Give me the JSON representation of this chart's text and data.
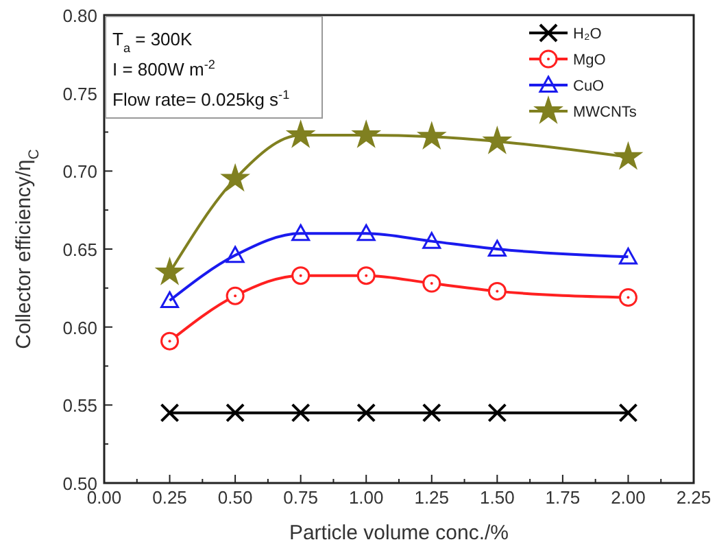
{
  "chart_data": {
    "type": "line",
    "xlabel": "Particle volume conc./%",
    "ylabel": "Collector efficiency/η$_{C}$",
    "x": [
      0.25,
      0.5,
      0.75,
      1.0,
      1.25,
      1.5,
      2.0
    ],
    "xlim": [
      0,
      2.25
    ],
    "xticks": [
      {
        "value": 0,
        "label": "0.00"
      },
      {
        "value": 0.125,
        "label": null
      },
      0.25,
      {
        "value": 0.375,
        "label": null
      },
      {
        "value": 0.5,
        "label": "0.50"
      },
      {
        "value": 0.625,
        "label": null
      },
      0.75,
      {
        "value": 0.875,
        "label": null
      },
      {
        "value": 1,
        "label": "1.00"
      },
      {
        "value": 1.125,
        "label": null
      },
      1.25,
      {
        "value": 1.375,
        "label": null
      },
      {
        "value": 1.5,
        "label": "1.50"
      },
      {
        "value": 1.625,
        "label": null
      },
      1.75,
      {
        "value": 1.875,
        "label": null
      },
      {
        "value": 2,
        "label": "2.00"
      },
      {
        "value": 2.125,
        "label": null
      },
      2.25
    ],
    "ylim": [
      0.5,
      0.8
    ],
    "yticks": [
      {
        "value": 0.5,
        "label": "0.50"
      },
      {
        "value": 0.525,
        "label": null
      },
      0.55,
      {
        "value": 0.575,
        "label": null
      },
      {
        "value": 0.6,
        "label": "0.60"
      },
      {
        "value": 0.625,
        "label": null
      },
      0.65,
      {
        "value": 0.675,
        "label": null
      },
      {
        "value": 0.7,
        "label": "0.70"
      },
      {
        "value": 0.725,
        "label": null
      },
      0.75,
      {
        "value": 0.775,
        "label": null
      },
      {
        "value": 0.8,
        "label": "0.80"
      }
    ],
    "grid": false,
    "legend": "top right",
    "annotations": [
      "T$_{a}$ = 300K",
      "I = 800W m$^{-2}$",
      "Flow rate= 0.025kg s$^{-1}$"
    ],
    "series": [
      {
        "name": "H₂O",
        "color": "#000000",
        "marker": "cross",
        "values": [
          0.545,
          0.545,
          0.545,
          0.545,
          0.545,
          0.545,
          0.545
        ]
      },
      {
        "name": "MgO",
        "color": "#ff2020",
        "marker": "circle",
        "values": [
          0.591,
          0.62,
          0.633,
          0.633,
          0.628,
          0.623,
          0.619
        ]
      },
      {
        "name": "CuO",
        "color": "#1a1aee",
        "marker": "triangle",
        "values": [
          0.617,
          0.646,
          0.66,
          0.66,
          0.655,
          0.65,
          0.645
        ]
      },
      {
        "name": "MWCNTs",
        "color": "#808020",
        "marker": "star",
        "values": [
          0.635,
          0.695,
          0.723,
          0.723,
          0.722,
          0.719,
          0.709
        ]
      }
    ]
  }
}
